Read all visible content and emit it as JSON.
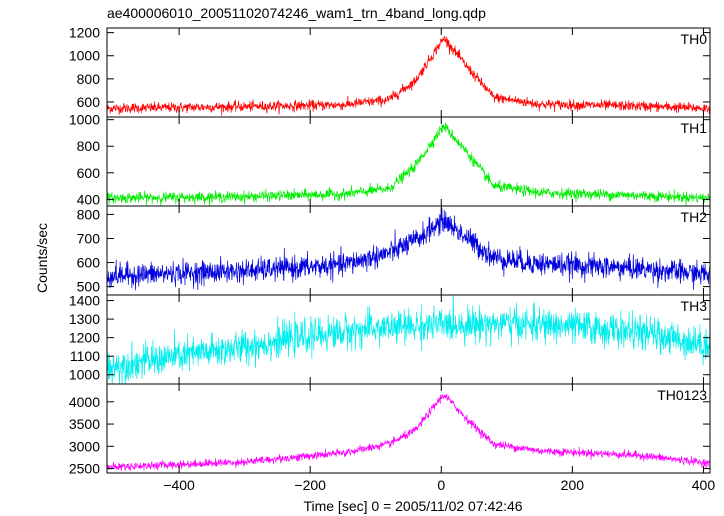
{
  "chart_data": {
    "type": "line",
    "title": "ae400006010_20051102074246_wam1_trn_4band_long.qdp",
    "xlabel": "Time [sec] 0 = 2005/11/02 07:42:46",
    "ylabel": "Counts/sec",
    "xlim": [
      -510,
      410
    ],
    "x_ticks": [
      -400,
      -200,
      0,
      200,
      400
    ],
    "x_tick_labels": [
      "−400",
      "−200",
      "0",
      "200",
      "400"
    ],
    "peak_time": 5,
    "panels": [
      {
        "label": "TH0",
        "color": "#ff0000",
        "ylim": [
          470,
          1240
        ],
        "y_ticks": [
          600,
          800,
          1000,
          1200
        ],
        "y_tick_labels": [
          "600",
          "800",
          "1000",
          "1200"
        ],
        "profile": {
          "x": [
            -510,
            -300,
            -150,
            -80,
            -40,
            0,
            5,
            40,
            80,
            150,
            300,
            410
          ],
          "y": [
            545,
            560,
            575,
            620,
            780,
            1120,
            1150,
            900,
            640,
            580,
            565,
            545
          ]
        },
        "noise": 22
      },
      {
        "label": "TH1",
        "color": "#00ee00",
        "ylim": [
          350,
          1020
        ],
        "y_ticks": [
          400,
          600,
          800,
          1000
        ],
        "y_tick_labels": [
          "400",
          "600",
          "800",
          "1000"
        ],
        "profile": {
          "x": [
            -510,
            -300,
            -150,
            -80,
            -40,
            0,
            5,
            40,
            80,
            150,
            300,
            410
          ],
          "y": [
            410,
            420,
            440,
            480,
            650,
            930,
            950,
            750,
            500,
            450,
            430,
            410
          ]
        },
        "noise": 20
      },
      {
        "label": "TH2",
        "color": "#0000dd",
        "ylim": [
          465,
          835
        ],
        "y_ticks": [
          500,
          600,
          700,
          800
        ],
        "y_tick_labels": [
          "500",
          "600",
          "700",
          "800"
        ],
        "profile": {
          "x": [
            -510,
            -300,
            -150,
            -80,
            -40,
            0,
            5,
            40,
            80,
            150,
            300,
            410
          ],
          "y": [
            545,
            565,
            590,
            640,
            690,
            770,
            775,
            700,
            620,
            595,
            575,
            550
          ]
        },
        "noise": 24
      },
      {
        "label": "TH3",
        "color": "#00eeee",
        "ylim": [
          950,
          1430
        ],
        "y_ticks": [
          1000,
          1100,
          1200,
          1300,
          1400
        ],
        "y_tick_labels": [
          "1000",
          "1100",
          "1200",
          "1300",
          "1400"
        ],
        "profile": {
          "x": [
            -510,
            -400,
            -300,
            -200,
            -100,
            0,
            100,
            200,
            300,
            410
          ],
          "y": [
            1040,
            1100,
            1150,
            1210,
            1250,
            1270,
            1275,
            1260,
            1230,
            1160
          ]
        },
        "noise": 45
      },
      {
        "label": "TH0123",
        "color": "#ff00ff",
        "ylim": [
          2400,
          4400
        ],
        "y_ticks": [
          2500,
          3000,
          3500,
          4000
        ],
        "y_tick_labels": [
          "2500",
          "3000",
          "3500",
          "4000"
        ],
        "profile": {
          "x": [
            -510,
            -300,
            -150,
            -80,
            -40,
            0,
            5,
            40,
            80,
            150,
            300,
            410
          ],
          "y": [
            2530,
            2650,
            2850,
            3050,
            3350,
            4100,
            4150,
            3600,
            3050,
            2900,
            2800,
            2620
          ]
        },
        "noise": 45
      }
    ]
  }
}
